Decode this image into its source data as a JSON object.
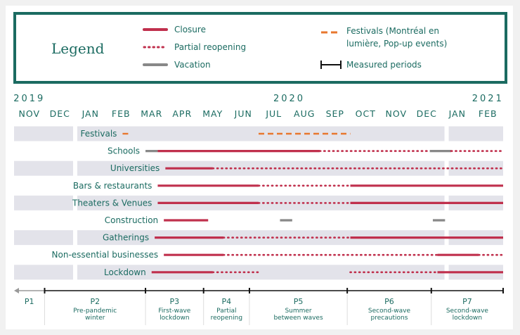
{
  "legend": {
    "title": "Legend",
    "closure": "Closure",
    "partial": "Partial reopening",
    "vacation": "Vacation",
    "festivals": "Festivals  (Montréal en lumière, Pop-up events)",
    "measured": "Measured periods"
  },
  "colors": {
    "closure": "#c0304d",
    "partial": "#c0304d",
    "vacation": "#888888",
    "festival": "#e8772e",
    "text": "#1b6b61",
    "band": "#e3e3ea"
  },
  "chart_data": {
    "type": "timeline",
    "years": [
      {
        "label": "2019",
        "month": 0
      },
      {
        "label": "2020",
        "month": 8.5
      },
      {
        "label": "2021",
        "month": 15
      }
    ],
    "months": [
      "NOV",
      "DEC",
      "JAN",
      "FEB",
      "MAR",
      "APR",
      "MAY",
      "JUN",
      "JUL",
      "AUG",
      "SEP",
      "OCT",
      "NOV",
      "DEC",
      "JAN",
      "FEB"
    ],
    "categories": [
      {
        "name": "Festivals",
        "segments": [
          {
            "type": "festival",
            "start": 3.55,
            "end": 3.75
          },
          {
            "type": "festival",
            "start": 8.0,
            "end": 11.0
          }
        ]
      },
      {
        "name": "Schools",
        "segments": [
          {
            "type": "vacation",
            "start": 4.3,
            "end": 4.7
          },
          {
            "type": "closure",
            "start": 4.7,
            "end": 10.0
          },
          {
            "type": "partial",
            "start": 10.0,
            "end": 13.6
          },
          {
            "type": "vacation",
            "start": 13.6,
            "end": 14.3
          },
          {
            "type": "partial",
            "start": 14.3,
            "end": 16.0
          }
        ]
      },
      {
        "name": "Universities",
        "segments": [
          {
            "type": "closure",
            "start": 4.95,
            "end": 6.5
          },
          {
            "type": "partial",
            "start": 6.5,
            "end": 16.0
          }
        ]
      },
      {
        "name": "Bars & restaurants",
        "segments": [
          {
            "type": "closure",
            "start": 4.7,
            "end": 8.0
          },
          {
            "type": "partial",
            "start": 8.0,
            "end": 11.0
          },
          {
            "type": "closure",
            "start": 11.0,
            "end": 16.0
          }
        ]
      },
      {
        "name": "Theaters & Venues",
        "segments": [
          {
            "type": "closure",
            "start": 4.7,
            "end": 8.0
          },
          {
            "type": "partial",
            "start": 8.0,
            "end": 11.0
          },
          {
            "type": "closure",
            "start": 11.0,
            "end": 16.0
          }
        ]
      },
      {
        "name": "Construction",
        "segments": [
          {
            "type": "closure",
            "start": 4.9,
            "end": 6.35
          },
          {
            "type": "vacation",
            "start": 8.7,
            "end": 9.1
          },
          {
            "type": "vacation",
            "start": 13.7,
            "end": 14.1
          }
        ]
      },
      {
        "name": "Gatherings",
        "segments": [
          {
            "type": "closure",
            "start": 4.6,
            "end": 6.85
          },
          {
            "type": "partial",
            "start": 6.85,
            "end": 11.0
          },
          {
            "type": "closure",
            "start": 11.0,
            "end": 16.0
          }
        ]
      },
      {
        "name": "Non-essential businesses",
        "segments": [
          {
            "type": "closure",
            "start": 4.9,
            "end": 6.85
          },
          {
            "type": "partial",
            "start": 6.85,
            "end": 13.85
          },
          {
            "type": "closure",
            "start": 13.85,
            "end": 15.2
          },
          {
            "type": "partial",
            "start": 15.2,
            "end": 16.0
          }
        ]
      },
      {
        "name": "Lockdown",
        "segments": [
          {
            "type": "closure",
            "start": 4.5,
            "end": 6.5
          },
          {
            "type": "partial",
            "start": 6.5,
            "end": 8.0
          },
          {
            "type": "partial",
            "start": 11.0,
            "end": 13.85
          },
          {
            "type": "closure",
            "start": 13.85,
            "end": 16.0
          }
        ]
      }
    ],
    "periods": [
      {
        "label": "P1",
        "desc": [],
        "start": 0,
        "end": 1.0
      },
      {
        "label": "P2",
        "desc": [
          "Pre-pandemic",
          "winter"
        ],
        "start": 1.0,
        "end": 4.3
      },
      {
        "label": "P3",
        "desc": [
          "First-wave",
          "lockdown"
        ],
        "start": 4.3,
        "end": 6.2
      },
      {
        "label": "P4",
        "desc": [
          "Partial",
          "reopening"
        ],
        "start": 6.2,
        "end": 7.7
      },
      {
        "label": "P5",
        "desc": [
          "Summer",
          "between waves"
        ],
        "start": 7.7,
        "end": 10.9
      },
      {
        "label": "P6",
        "desc": [
          "Second-wave",
          "precautions"
        ],
        "start": 10.9,
        "end": 13.65
      },
      {
        "label": "P7",
        "desc": [
          "Second-wave",
          "lockdown"
        ],
        "start": 13.65,
        "end": 16.0
      }
    ]
  }
}
